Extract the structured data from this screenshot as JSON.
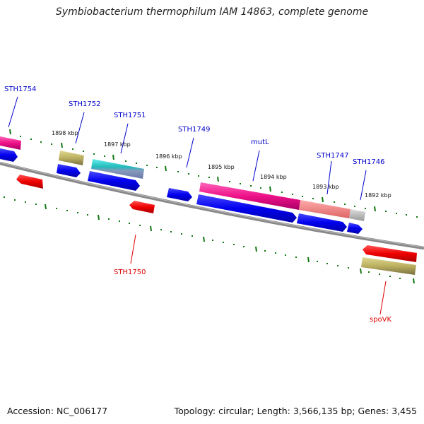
{
  "title": "Symbiobacterium thermophilum IAM 14863, complete genome",
  "footer": {
    "accession": "Accession: NC_006177",
    "summary": "Topology: circular; Length: 3,566,135 bp; Genes: 3,455"
  },
  "colors": {
    "label_blue": "#0000cc",
    "label_red": "#dd0000",
    "tick_green": "#117711",
    "backbone": "#888888"
  },
  "kbp_labels": [
    "1898 kbp",
    "1897 kbp",
    "1896 kbp",
    "1895 kbp",
    "1894 kbp",
    "1893 kbp",
    "1892 kbp"
  ],
  "gene_labels_top": [
    "STH1754",
    "STH1752",
    "STH1751",
    "STH1749",
    "mutL",
    "STH1747",
    "STH1746"
  ],
  "gene_labels_bottom": [
    "STH1750",
    "spoVK"
  ]
}
